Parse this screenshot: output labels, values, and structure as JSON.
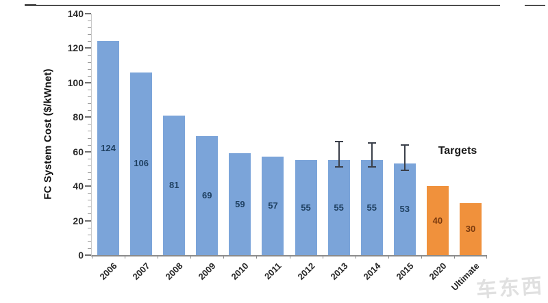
{
  "page": {
    "watermark": "车东西"
  },
  "chart_data": {
    "type": "bar",
    "title": "",
    "xlabel": "",
    "ylabel": "FC System Cost ($/kWnet)",
    "ylim": [
      0,
      140
    ],
    "yticks": [
      0,
      20,
      40,
      60,
      80,
      100,
      120,
      140
    ],
    "ytick_interval": 20,
    "minor_tick_interval": 4,
    "grid": "off",
    "legend": "none",
    "annotation": "Targets",
    "categories": [
      "2006",
      "2007",
      "2008",
      "2009",
      "2010",
      "2011",
      "2012",
      "2013",
      "2014",
      "2015",
      "2020",
      "Ultimate"
    ],
    "bars": [
      {
        "label": "2006",
        "value": 124,
        "type": "actual",
        "error": null
      },
      {
        "label": "2007",
        "value": 106,
        "type": "actual",
        "error": null
      },
      {
        "label": "2008",
        "value": 81,
        "type": "actual",
        "error": null
      },
      {
        "label": "2009",
        "value": 69,
        "type": "actual",
        "error": null
      },
      {
        "label": "2010",
        "value": 59,
        "type": "actual",
        "error": null
      },
      {
        "label": "2011",
        "value": 57,
        "type": "actual",
        "error": null
      },
      {
        "label": "2012",
        "value": 55,
        "type": "actual",
        "error": null
      },
      {
        "label": "2013",
        "value": 55,
        "type": "actual",
        "error": {
          "low": 51,
          "high": 66
        }
      },
      {
        "label": "2014",
        "value": 55,
        "type": "actual",
        "error": {
          "low": 51,
          "high": 65
        }
      },
      {
        "label": "2015",
        "value": 53,
        "type": "actual",
        "error": {
          "low": 49,
          "high": 64
        }
      },
      {
        "label": "2020",
        "value": 40,
        "type": "target",
        "error": null
      },
      {
        "label": "Ultimate",
        "value": 30,
        "type": "target",
        "error": null
      }
    ],
    "colors": {
      "actual": "#7BA4D9",
      "target": "#F0913C",
      "label_actual": "#1F4061",
      "label_target": "#7B3A0E",
      "error_bar": "#3A3F49"
    }
  }
}
